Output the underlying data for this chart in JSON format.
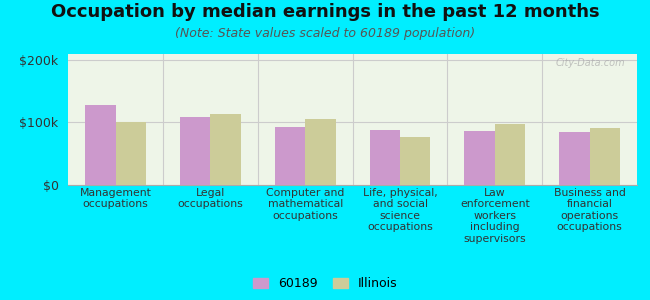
{
  "title": "Occupation by median earnings in the past 12 months",
  "subtitle": "(Note: State values scaled to 60189 population)",
  "categories": [
    "Management\noccupations",
    "Legal\noccupations",
    "Computer and\nmathematical\noccupations",
    "Life, physical,\nand social\nscience\noccupations",
    "Law\nenforcement\nworkers\nincluding\nsupervisors",
    "Business and\nfinancial\noperations\noccupations"
  ],
  "values_60189": [
    128000,
    108000,
    93000,
    88000,
    86000,
    85000
  ],
  "values_illinois": [
    100000,
    113000,
    106000,
    76000,
    98000,
    91000
  ],
  "bar_color_60189": "#cc99cc",
  "bar_color_illinois": "#cccc99",
  "background_color": "#00eeff",
  "plot_bg_color": "#eef5e8",
  "ylabel_ticks": [
    "$0",
    "$100k",
    "$200k"
  ],
  "ytick_values": [
    0,
    100000,
    200000
  ],
  "ylim": [
    0,
    210000
  ],
  "legend_labels": [
    "60189",
    "Illinois"
  ],
  "watermark": "City-Data.com",
  "title_fontsize": 13,
  "subtitle_fontsize": 9,
  "tick_fontsize": 9,
  "category_fontsize": 7.8
}
